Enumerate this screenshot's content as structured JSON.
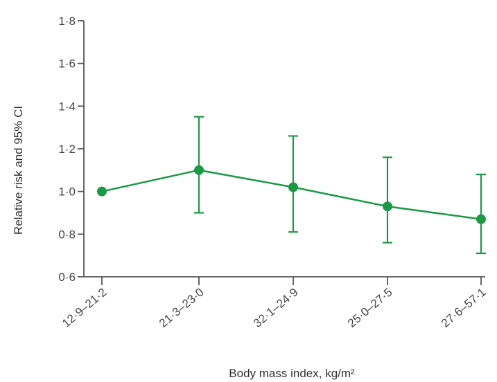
{
  "chart_data": {
    "type": "line",
    "title": "",
    "xlabel": "Body mass index, kg/m²",
    "ylabel": "Relative risk and 95% CI",
    "categories": [
      "12·9–21·2",
      "21·3–23·0",
      "32·1–24·9",
      "25·0–27·5",
      "27·6–57·1"
    ],
    "series": [
      {
        "values": [
          1.0,
          1.1,
          1.02,
          0.93,
          0.87
        ],
        "ci_low": [
          null,
          0.9,
          0.81,
          0.76,
          0.71
        ],
        "ci_high": [
          null,
          1.35,
          1.26,
          1.16,
          1.08
        ]
      }
    ],
    "ylim": [
      0.6,
      1.8
    ],
    "yticks": [
      "0·6",
      "0·8",
      "1·0",
      "1·2",
      "1·4",
      "1·6",
      "1·8"
    ],
    "grid": false,
    "colors": {
      "series": "#1a9a45",
      "axis": "#555555"
    }
  }
}
